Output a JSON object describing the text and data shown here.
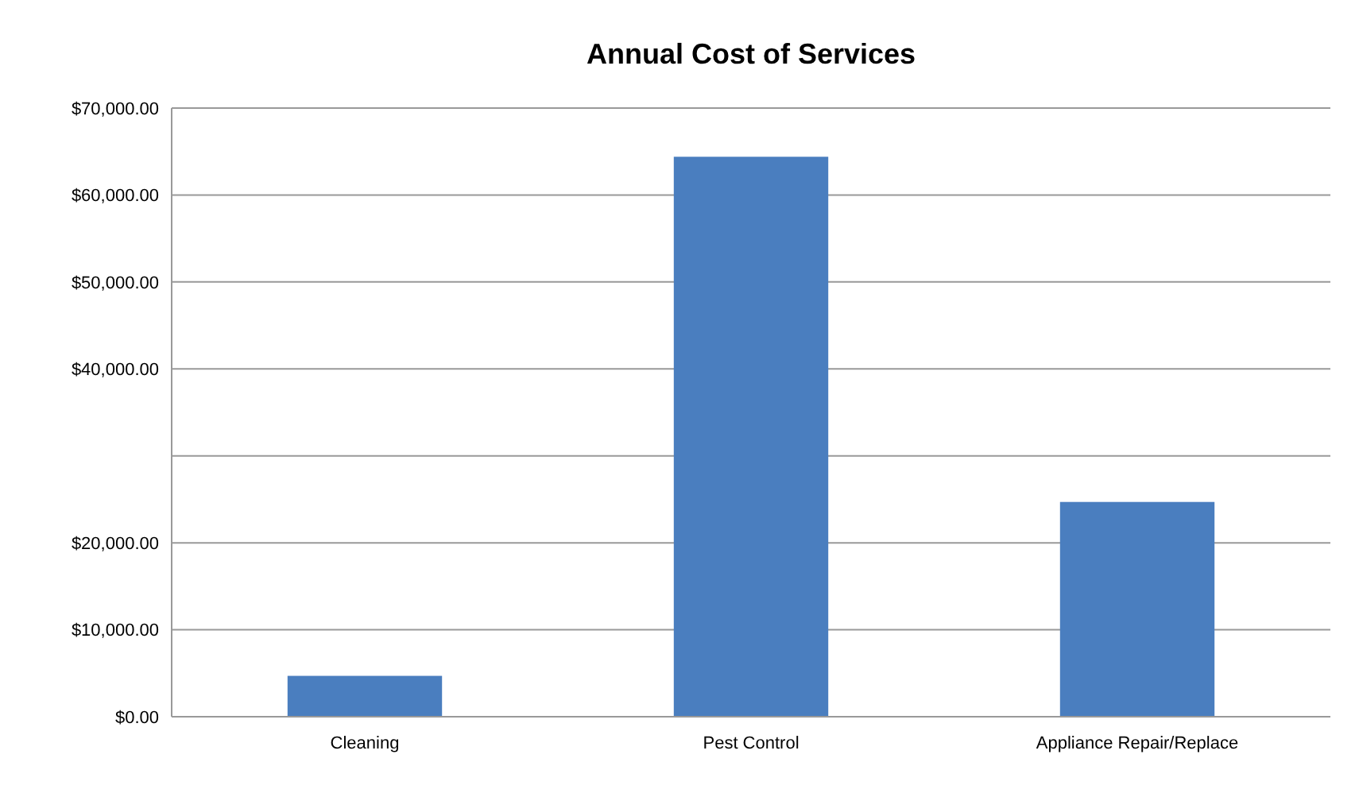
{
  "chart_data": {
    "type": "bar",
    "title": "Annual Cost of Services",
    "categories": [
      "Cleaning",
      "Pest Control",
      "Appliance Repair/Replace"
    ],
    "values": [
      4700,
      64400,
      24700
    ],
    "color": "#4a7ebf",
    "ylim": [
      0,
      70000
    ],
    "yticks": [
      {
        "value": 0,
        "label": "$0.00"
      },
      {
        "value": 10000,
        "label": "$10,000.00"
      },
      {
        "value": 20000,
        "label": "$20,000.00"
      },
      {
        "value": 30000,
        "label": null
      },
      {
        "value": 40000,
        "label": "$40,000.00"
      },
      {
        "value": 50000,
        "label": "$50,000.00"
      },
      {
        "value": 60000,
        "label": "$60,000.00"
      },
      {
        "value": 70000,
        "label": "$70,000.00"
      }
    ],
    "grid": true
  }
}
